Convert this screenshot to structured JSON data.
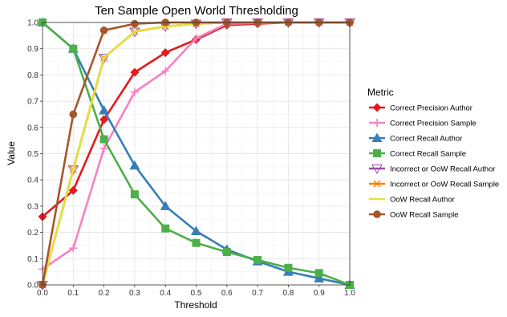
{
  "chart_data": {
    "type": "line",
    "title": "Ten Sample Open World Thresholding",
    "xlabel": "Threshold",
    "ylabel": "Value",
    "xlim": [
      0,
      1
    ],
    "ylim": [
      0,
      1
    ],
    "x": [
      0.0,
      0.1,
      0.2,
      0.3,
      0.4,
      0.5,
      0.6,
      0.7,
      0.8,
      0.9,
      1.0
    ],
    "x_ticks": [
      "0.0",
      "0.1",
      "0.2",
      "0.3",
      "0.4",
      "0.5",
      "0.6",
      "0.7",
      "0.8",
      "0.9",
      "1.0"
    ],
    "y_ticks": [
      "0.0",
      "0.1",
      "0.2",
      "0.3",
      "0.4",
      "0.5",
      "0.6",
      "0.7",
      "0.8",
      "0.9",
      "1.0"
    ],
    "grid": true,
    "legend_title": "Metric",
    "legend_position": "right",
    "series": [
      {
        "name": "Correct Precision Author",
        "color": "#e41a1c",
        "marker": "diamond",
        "values": [
          0.26,
          0.36,
          0.63,
          0.81,
          0.885,
          0.935,
          0.99,
          0.995,
          1.0,
          1.0,
          1.0
        ]
      },
      {
        "name": "Correct Precision Sample",
        "color": "#f781bf",
        "marker": "plus",
        "values": [
          0.06,
          0.14,
          0.52,
          0.735,
          0.815,
          0.94,
          0.995,
          0.998,
          1.0,
          1.0,
          1.0
        ]
      },
      {
        "name": "Correct Recall Author",
        "color": "#377eb8",
        "marker": "triangle-up",
        "values": [
          1.0,
          0.9,
          0.665,
          0.455,
          0.3,
          0.205,
          0.135,
          0.09,
          0.05,
          0.025,
          0.0
        ]
      },
      {
        "name": "Correct Recall Sample",
        "color": "#4daf4a",
        "marker": "square",
        "values": [
          1.0,
          0.9,
          0.555,
          0.345,
          0.215,
          0.16,
          0.125,
          0.095,
          0.065,
          0.045,
          0.0
        ]
      },
      {
        "name": "Incorrect or OoW Recall Author",
        "color": "#984ea3",
        "marker": "triangle-down",
        "values": [
          0.0,
          0.44,
          0.865,
          0.965,
          0.985,
          0.995,
          1.0,
          1.0,
          1.0,
          1.0,
          1.0
        ]
      },
      {
        "name": "Incorrect or OoW Recall Sample",
        "color": "#ff7f00",
        "marker": "cross",
        "values": [
          0.0,
          0.44,
          0.865,
          0.965,
          0.985,
          0.995,
          1.0,
          1.0,
          1.0,
          1.0,
          1.0
        ]
      },
      {
        "name": "OoW Recall Author",
        "color": "#e5e23a",
        "marker": "line-only",
        "values": [
          0.0,
          0.44,
          0.865,
          0.965,
          0.985,
          0.995,
          1.0,
          1.0,
          1.0,
          1.0,
          1.0
        ]
      },
      {
        "name": "OoW Recall Sample",
        "color": "#a65628",
        "marker": "circle",
        "values": [
          0.0,
          0.65,
          0.97,
          0.995,
          1.0,
          1.0,
          1.0,
          1.0,
          1.0,
          1.0,
          1.0
        ]
      }
    ]
  }
}
